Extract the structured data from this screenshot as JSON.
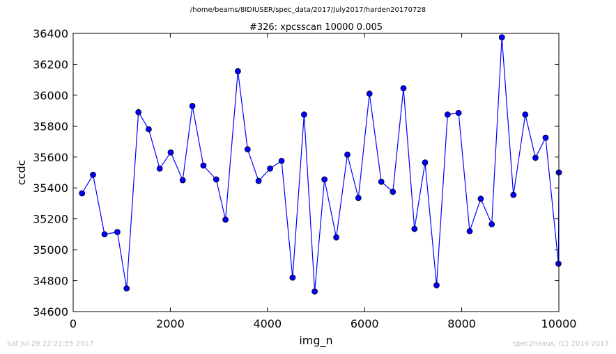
{
  "figure": {
    "path_title": "/home/beams/8IDIUSER/spec_data/2017/July2017/harden20170728",
    "footer_left": "Sat Jul 29 22:21:55 2017",
    "footer_right": "spec2nexus, (C) 2014-2017"
  },
  "chart_data": {
    "type": "line",
    "title": "#326: xpcsscan 10000 0.005",
    "xlabel": "img_n",
    "ylabel": "ccdc",
    "xlim": [
      0,
      10000
    ],
    "ylim": [
      34600,
      36400
    ],
    "xticks": [
      0,
      2000,
      4000,
      6000,
      8000,
      10000
    ],
    "yticks": [
      34600,
      34800,
      35000,
      35200,
      35400,
      35600,
      35800,
      36000,
      36200,
      36400
    ],
    "grid": false,
    "line_color": "#0000ff",
    "marker": "circle",
    "series": [
      {
        "x": [
          182,
          409,
          645,
          909,
          1100,
          1345,
          1555,
          1782,
          2009,
          2255,
          2455,
          2682,
          2945,
          3136,
          3391,
          3591,
          3818,
          4055,
          4291,
          4518,
          4755,
          4973,
          5173,
          5418,
          5645,
          5873,
          6100,
          6345,
          6582,
          6800,
          7027,
          7245,
          7482,
          7709,
          7936,
          8164,
          8391,
          8618,
          8827,
          9064,
          9309,
          9518,
          9727,
          9991,
          10000
        ],
        "y": [
          35365,
          35485,
          35100,
          35115,
          34750,
          35890,
          35780,
          35525,
          35630,
          35450,
          35930,
          35545,
          35455,
          35195,
          36155,
          35650,
          35445,
          35525,
          35575,
          34820,
          35875,
          34730,
          35455,
          35080,
          35615,
          35335,
          36010,
          35440,
          35375,
          36045,
          35135,
          35565,
          34770,
          35875,
          35885,
          35120,
          35330,
          35165,
          36375,
          35355,
          35875,
          35595,
          35725,
          34910,
          35500
        ]
      }
    ]
  }
}
